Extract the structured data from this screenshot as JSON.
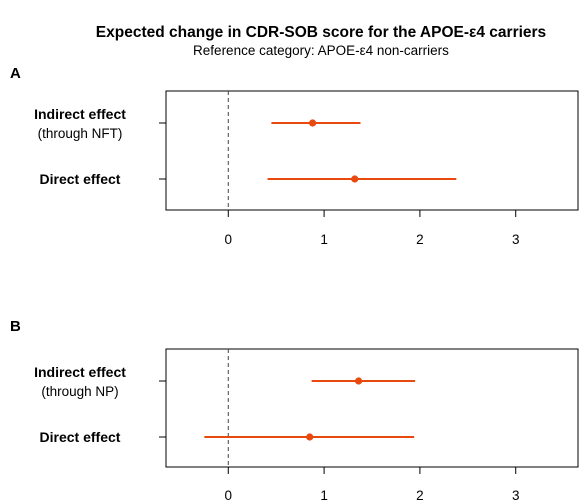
{
  "chart_data": {
    "type": "forest",
    "title": "Expected change in CDR-SOB score for the APOE-ε4 carriers",
    "subtitle": "Reference category: APOE-ε4 non-carriers",
    "xlim": [
      -0.65,
      3.65
    ],
    "x_ticks": [
      0,
      1,
      2,
      3
    ],
    "reference_line": 0,
    "marker_color": "#e8490f",
    "panels": [
      {
        "label": "A",
        "rows": [
          {
            "label": "Indirect effect",
            "sublabel": "(through NFT)",
            "estimate": 0.88,
            "lower": 0.45,
            "upper": 1.38
          },
          {
            "label": "Direct effect",
            "sublabel": "",
            "estimate": 1.32,
            "lower": 0.41,
            "upper": 2.38
          }
        ]
      },
      {
        "label": "B",
        "rows": [
          {
            "label": "Indirect effect",
            "sublabel": "(through NP)",
            "estimate": 1.36,
            "lower": 0.87,
            "upper": 1.95
          },
          {
            "label": "Direct effect",
            "sublabel": "",
            "estimate": 0.85,
            "lower": -0.25,
            "upper": 1.94
          }
        ]
      }
    ]
  }
}
